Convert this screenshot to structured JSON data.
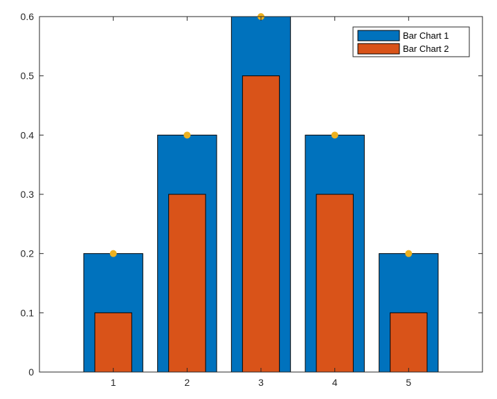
{
  "chart_data": {
    "type": "bar",
    "title": "",
    "xlabel": "",
    "ylabel": "",
    "categories": [
      "1",
      "2",
      "3",
      "4",
      "5"
    ],
    "x": [
      1,
      2,
      3,
      4,
      5
    ],
    "xlim": [
      0,
      6
    ],
    "ylim": [
      0,
      0.6
    ],
    "yticks": [
      0,
      0.1,
      0.2,
      0.3,
      0.4,
      0.5,
      0.6
    ],
    "ytick_labels": [
      "0",
      "0.1",
      "0.2",
      "0.3",
      "0.4",
      "0.5",
      "0.6"
    ],
    "xtick_labels": [
      "1",
      "2",
      "3",
      "4",
      "5"
    ],
    "grid": false,
    "legend_position": "top-right",
    "series": [
      {
        "name": "Bar Chart 1",
        "values": [
          0.2,
          0.4,
          0.6,
          0.4,
          0.2
        ],
        "color": "#0072BD",
        "width": 0.8
      },
      {
        "name": "Bar Chart 2",
        "values": [
          0.1,
          0.3,
          0.5,
          0.3,
          0.1
        ],
        "color": "#D95319",
        "width": 0.5
      }
    ],
    "markers": {
      "values": [
        0.2,
        0.4,
        0.6,
        0.4,
        0.2
      ],
      "color": "#EDB120"
    }
  }
}
